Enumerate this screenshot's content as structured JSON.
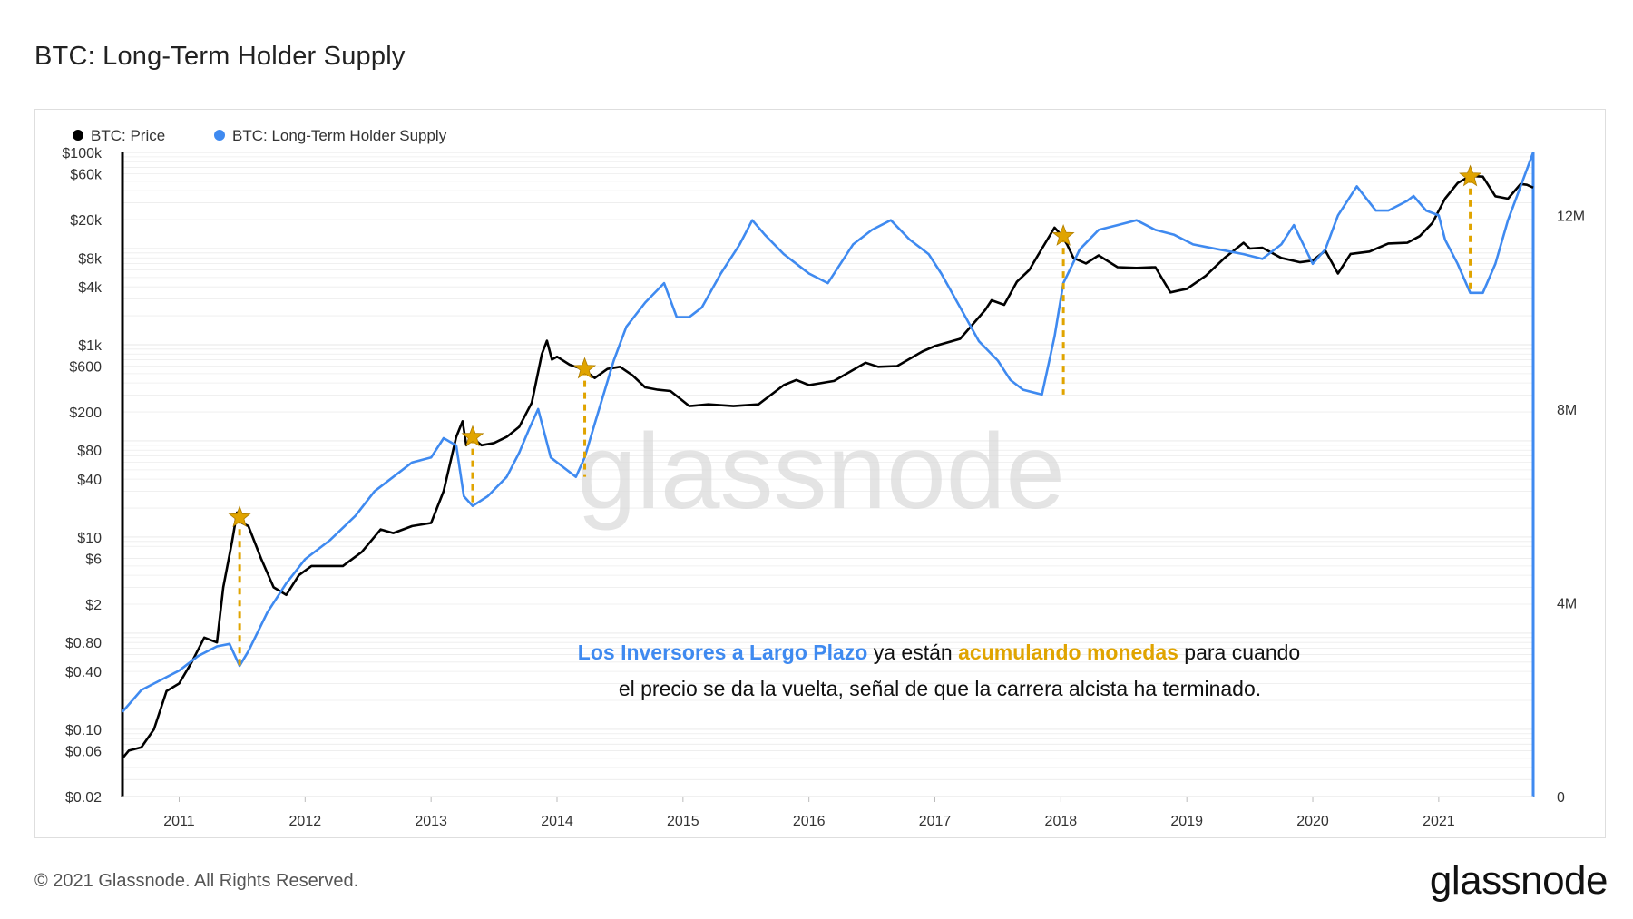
{
  "title": "BTC: Long-Term Holder Supply",
  "footer": {
    "copyright": "© 2021 Glassnode. All Rights Reserved.",
    "brand": "glassnode"
  },
  "watermark": "glassnode",
  "colors": {
    "price": "#000000",
    "lth_supply": "#3f8af0",
    "annotation_blue": "#3f8af0",
    "annotation_gold": "#e0a400",
    "star": "#e0a400",
    "grid": "#ececec"
  },
  "annotation": {
    "line1_blue": "Los Inversores a Largo Plazo",
    "line1_mid": " ya están ",
    "line1_gold": "acumulando monedas",
    "line1_end": " para cuando",
    "line2": "el precio se da la vuelta, señal de que la carrera alcista ha terminado."
  },
  "chart_data": {
    "type": "line",
    "title": "BTC: Long-Term Holder Supply",
    "legend": {
      "placement": "top-left",
      "entries": [
        "BTC: Price",
        "BTC: Long-Term Holder Supply"
      ]
    },
    "x_ticks": [
      "2011",
      "2012",
      "2013",
      "2014",
      "2015",
      "2016",
      "2017",
      "2018",
      "2019",
      "2020",
      "2021"
    ],
    "x_range": [
      2010.55,
      2021.75
    ],
    "y_left": {
      "scale": "log",
      "ticks": [
        "$100k",
        "$60k",
        "$20k",
        "$8k",
        "$4k",
        "$1k",
        "$600",
        "$200",
        "$80",
        "$40",
        "$10",
        "$6",
        "$2",
        "$0.80",
        "$0.40",
        "$0.10",
        "$0.06",
        "$0.02"
      ],
      "tick_values": [
        100000,
        60000,
        20000,
        8000,
        4000,
        1000,
        600,
        200,
        80,
        40,
        10,
        6,
        2,
        0.8,
        0.4,
        0.1,
        0.06,
        0.02
      ],
      "range": [
        0.02,
        100000
      ]
    },
    "y_right": {
      "scale": "linear",
      "ticks": [
        "12M",
        "8M",
        "4M",
        "0"
      ],
      "tick_values": [
        12,
        8,
        4,
        0
      ],
      "unit": "M",
      "range": [
        0,
        13.3
      ]
    },
    "grid": true,
    "series": [
      {
        "name": "BTC: Price",
        "axis": "left",
        "x": [
          2010.55,
          2010.6,
          2010.7,
          2010.8,
          2010.9,
          2011.0,
          2011.1,
          2011.2,
          2011.3,
          2011.35,
          2011.42,
          2011.46,
          2011.5,
          2011.55,
          2011.65,
          2011.75,
          2011.85,
          2011.95,
          2012.05,
          2012.15,
          2012.3,
          2012.45,
          2012.6,
          2012.7,
          2012.85,
          2013.0,
          2013.1,
          2013.2,
          2013.25,
          2013.28,
          2013.32,
          2013.4,
          2013.5,
          2013.6,
          2013.7,
          2013.8,
          2013.88,
          2013.92,
          2013.96,
          2014.0,
          2014.1,
          2014.2,
          2014.3,
          2014.4,
          2014.5,
          2014.6,
          2014.7,
          2014.8,
          2014.9,
          2015.0,
          2015.05,
          2015.2,
          2015.4,
          2015.6,
          2015.8,
          2015.9,
          2016.0,
          2016.2,
          2016.45,
          2016.55,
          2016.7,
          2016.9,
          2017.0,
          2017.2,
          2017.4,
          2017.45,
          2017.55,
          2017.65,
          2017.75,
          2017.85,
          2017.95,
          2018.0,
          2018.05,
          2018.1,
          2018.2,
          2018.3,
          2018.45,
          2018.6,
          2018.75,
          2018.87,
          2018.95,
          2019.0,
          2019.15,
          2019.3,
          2019.45,
          2019.5,
          2019.6,
          2019.75,
          2019.9,
          2020.0,
          2020.1,
          2020.2,
          2020.3,
          2020.45,
          2020.6,
          2020.75,
          2020.85,
          2020.95,
          2021.05,
          2021.15,
          2021.25,
          2021.35,
          2021.45,
          2021.55,
          2021.65,
          2021.7,
          2021.75
        ],
        "values": [
          0.05,
          0.06,
          0.065,
          0.1,
          0.25,
          0.3,
          0.5,
          0.9,
          0.8,
          3,
          9,
          18,
          14,
          13,
          6,
          3,
          2.5,
          4,
          5,
          5,
          5,
          7,
          12,
          11,
          13,
          14,
          30,
          110,
          160,
          90,
          110,
          90,
          95,
          110,
          140,
          250,
          800,
          1100,
          700,
          750,
          620,
          560,
          450,
          560,
          590,
          480,
          360,
          340,
          330,
          260,
          230,
          240,
          230,
          240,
          380,
          430,
          380,
          420,
          650,
          590,
          600,
          850,
          970,
          1150,
          2300,
          2900,
          2600,
          4500,
          6000,
          10000,
          16500,
          14000,
          11000,
          8000,
          7000,
          8500,
          6400,
          6300,
          6400,
          3500,
          3700,
          3800,
          5200,
          8000,
          11500,
          10000,
          10200,
          8000,
          7200,
          7500,
          9500,
          5500,
          8800,
          9300,
          11300,
          11500,
          13500,
          18500,
          33000,
          48000,
          57000,
          56000,
          35000,
          33000,
          47000,
          46000,
          43000
        ]
      },
      {
        "name": "BTC: Long-Term Holder Supply",
        "axis": "right",
        "unit": "M",
        "x": [
          2010.55,
          2010.7,
          2010.85,
          2011.0,
          2011.15,
          2011.3,
          2011.4,
          2011.48,
          2011.55,
          2011.7,
          2011.85,
          2012.0,
          2012.2,
          2012.4,
          2012.55,
          2012.7,
          2012.85,
          2013.0,
          2013.1,
          2013.2,
          2013.26,
          2013.33,
          2013.45,
          2013.6,
          2013.7,
          2013.78,
          2013.85,
          2013.95,
          2014.05,
          2014.15,
          2014.22,
          2014.3,
          2014.45,
          2014.55,
          2014.7,
          2014.85,
          2014.95,
          2015.05,
          2015.15,
          2015.3,
          2015.45,
          2015.55,
          2015.65,
          2015.8,
          2015.9,
          2016.0,
          2016.15,
          2016.35,
          2016.5,
          2016.65,
          2016.8,
          2016.95,
          2017.05,
          2017.2,
          2017.35,
          2017.5,
          2017.6,
          2017.7,
          2017.85,
          2017.95,
          2018.02,
          2018.15,
          2018.3,
          2018.45,
          2018.6,
          2018.75,
          2018.9,
          2019.05,
          2019.25,
          2019.45,
          2019.6,
          2019.75,
          2019.85,
          2020.0,
          2020.1,
          2020.2,
          2020.35,
          2020.5,
          2020.6,
          2020.75,
          2020.8,
          2020.9,
          2021.0,
          2021.05,
          2021.15,
          2021.25,
          2021.35,
          2021.45,
          2021.55,
          2021.65,
          2021.75
        ],
        "values": [
          1.75,
          2.2,
          2.4,
          2.6,
          2.9,
          3.1,
          3.15,
          2.7,
          3.0,
          3.8,
          4.4,
          4.9,
          5.3,
          5.8,
          6.3,
          6.6,
          6.9,
          7.0,
          7.4,
          7.25,
          6.2,
          6.0,
          6.2,
          6.6,
          7.1,
          7.6,
          8.0,
          7.0,
          6.8,
          6.6,
          7.0,
          7.7,
          9.0,
          9.7,
          10.2,
          10.6,
          9.9,
          9.9,
          10.1,
          10.8,
          11.4,
          11.9,
          11.6,
          11.2,
          11.0,
          10.8,
          10.6,
          11.4,
          11.7,
          11.9,
          11.5,
          11.2,
          10.8,
          10.1,
          9.4,
          9.0,
          8.6,
          8.4,
          8.3,
          9.5,
          10.6,
          11.3,
          11.7,
          11.8,
          11.9,
          11.7,
          11.6,
          11.4,
          11.3,
          11.2,
          11.1,
          11.4,
          11.8,
          11.0,
          11.3,
          12.0,
          12.6,
          12.1,
          12.1,
          12.3,
          12.4,
          12.1,
          12.0,
          11.5,
          11.0,
          10.4,
          10.4,
          11.0,
          11.9,
          12.6,
          13.3
        ]
      }
    ],
    "markers": [
      {
        "x": 2011.48,
        "price": 16,
        "lth_min": 2.7
      },
      {
        "x": 2013.33,
        "price": 110,
        "lth_min": 6.0
      },
      {
        "x": 2014.22,
        "price": 560,
        "lth_min": 6.6
      },
      {
        "x": 2018.02,
        "price": 13500,
        "lth_min": 8.3
      },
      {
        "x": 2021.25,
        "price": 56000,
        "lth_min": 10.4
      }
    ]
  }
}
